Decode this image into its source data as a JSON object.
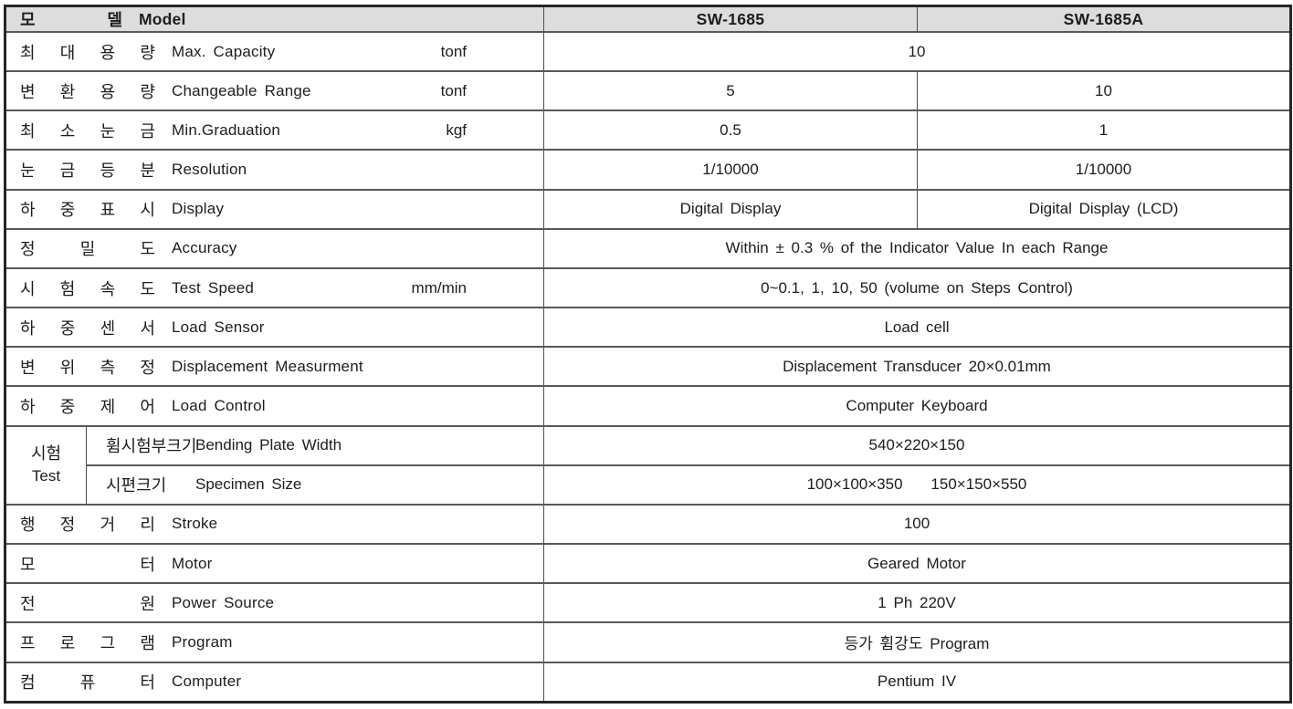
{
  "header": {
    "label_ko": "모 델",
    "label_en": "Model",
    "model_1": "SW-1685",
    "model_2": "SW-1685A"
  },
  "colors": {
    "header_bg": "#dcddde",
    "border": "#4d4d4d",
    "text": "#1d1d1d"
  },
  "rows": [
    {
      "ko": "최 대 용 량",
      "en": "Max. Capacity",
      "unit": "tonf",
      "values": [
        "10"
      ]
    },
    {
      "ko": "변 환 용 량",
      "en": "Changeable Range",
      "unit": "tonf",
      "values": [
        "5",
        "10"
      ]
    },
    {
      "ko": "최 소 눈 금",
      "en": "Min.Graduation",
      "unit": "kgf",
      "values": [
        "0.5",
        "1"
      ]
    },
    {
      "ko": "눈 금 등 분",
      "en": "Resolution",
      "unit": "",
      "values": [
        "1/10000",
        "1/10000"
      ]
    },
    {
      "ko": "하 중 표 시",
      "en": "Display",
      "unit": "",
      "values": [
        "Digital Display",
        "Digital Display (LCD)"
      ]
    },
    {
      "ko": "정 밀 도",
      "en": "Accuracy",
      "unit": "",
      "values": [
        "Within ± 0.3 % of the Indicator Value In each Range"
      ]
    },
    {
      "ko": "시 험 속 도",
      "en": "Test Speed",
      "unit": "mm/min",
      "values": [
        "0~0.1, 1, 10, 50 (volume on Steps Control)"
      ]
    },
    {
      "ko": "하 중 센 서",
      "en": "Load Sensor",
      "unit": "",
      "values": [
        "Load cell"
      ]
    },
    {
      "ko": "변 위 측 정",
      "en": "Displacement Measurment",
      "unit": "",
      "values": [
        "Displacement Transducer 20×0.01mm"
      ]
    },
    {
      "ko": "하 중 제 어",
      "en": "Load Control",
      "unit": "",
      "values": [
        "Computer Keyboard"
      ]
    },
    {
      "ko": "행 정 거 리",
      "en": "Stroke",
      "unit": "",
      "values": [
        "100"
      ]
    },
    {
      "ko": "모 터",
      "en": "Motor",
      "unit": "",
      "values": [
        "Geared Motor"
      ]
    },
    {
      "ko": "전 원",
      "en": "Power Source",
      "unit": "",
      "values": [
        "1 Ph 220V"
      ]
    },
    {
      "ko": "프 로 그 램",
      "en": "Program",
      "unit": "",
      "values": [
        "등가 휨강도 Program"
      ]
    },
    {
      "ko": "컴 퓨 터",
      "en": "Computer",
      "unit": "",
      "values": [
        "Pentium IV"
      ]
    }
  ],
  "test_group": {
    "ko": "시험",
    "en": "Test",
    "sub_rows": [
      {
        "ko": "휨시험부크기",
        "en": "Bending Plate Width",
        "value": "540×220×150"
      },
      {
        "ko": "시편크기",
        "en": "Specimen Size",
        "value": "100×100×350    150×150×550"
      }
    ]
  }
}
